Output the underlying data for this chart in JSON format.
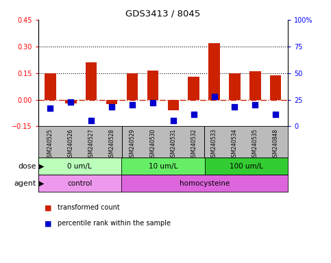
{
  "title": "GDS3413 / 8045",
  "samples": [
    "GSM240525",
    "GSM240526",
    "GSM240527",
    "GSM240528",
    "GSM240529",
    "GSM240530",
    "GSM240531",
    "GSM240532",
    "GSM240533",
    "GSM240534",
    "GSM240535",
    "GSM240848"
  ],
  "transformed_count": [
    0.148,
    -0.02,
    0.21,
    -0.025,
    0.148,
    0.165,
    -0.06,
    0.13,
    0.32,
    0.148,
    0.16,
    0.137
  ],
  "percentile_rank": [
    17,
    23,
    5,
    18,
    20,
    22,
    5,
    11,
    28,
    18,
    20,
    11
  ],
  "ylim_left": [
    -0.15,
    0.45
  ],
  "ylim_right": [
    0,
    100
  ],
  "yticks_left": [
    -0.15,
    0,
    0.15,
    0.3,
    0.45
  ],
  "yticks_right": [
    0,
    25,
    50,
    75,
    100
  ],
  "ytick_labels_right": [
    "0",
    "25",
    "50",
    "75",
    "100%"
  ],
  "hlines": [
    0.15,
    0.3
  ],
  "bar_color": "#cc2200",
  "dot_color": "#0000cc",
  "zero_line_color": "#cc2200",
  "dose_groups": [
    {
      "label": "0 um/L",
      "start": 0,
      "end": 4,
      "color": "#bbffbb"
    },
    {
      "label": "10 um/L",
      "start": 4,
      "end": 8,
      "color": "#66ee66"
    },
    {
      "label": "100 um/L",
      "start": 8,
      "end": 12,
      "color": "#33cc33"
    }
  ],
  "agent_groups": [
    {
      "label": "control",
      "start": 0,
      "end": 4,
      "color": "#ee99ee"
    },
    {
      "label": "homocysteine",
      "start": 4,
      "end": 12,
      "color": "#dd66dd"
    }
  ],
  "dose_label": "dose",
  "agent_label": "agent",
  "legend_items": [
    {
      "label": "transformed count",
      "color": "#cc2200"
    },
    {
      "label": "percentile rank within the sample",
      "color": "#0000cc"
    }
  ],
  "bar_width": 0.55,
  "dot_size": 30,
  "xlabels_bg": "#bbbbbb",
  "separators": [
    3.5,
    7.5
  ]
}
